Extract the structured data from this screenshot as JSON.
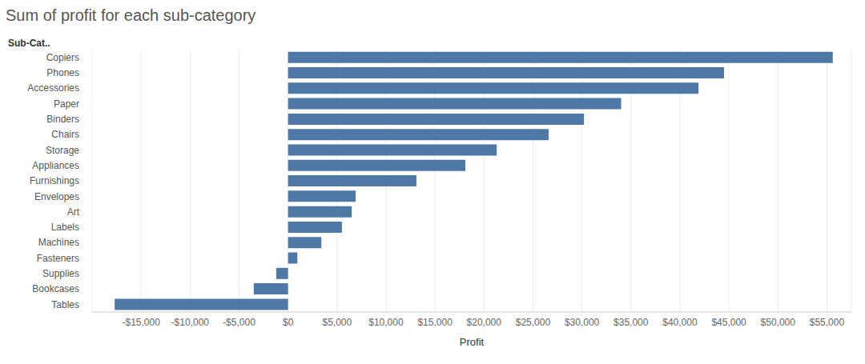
{
  "chart_data": {
    "type": "bar",
    "title": "Sum of profit for each sub-category",
    "x_label": "Profit",
    "y_label": "Sub-Cat..",
    "orientation": "horizontal",
    "categories": [
      "Copiers",
      "Phones",
      "Accessories",
      "Paper",
      "Binders",
      "Chairs",
      "Storage",
      "Appliances",
      "Furnishings",
      "Envelopes",
      "Art",
      "Labels",
      "Machines",
      "Fasteners",
      "Supplies",
      "Bookcases",
      "Tables"
    ],
    "values": [
      55600,
      44500,
      41900,
      34000,
      30200,
      26600,
      21300,
      18100,
      13100,
      6900,
      6500,
      5500,
      3400,
      950,
      -1200,
      -3500,
      -17700
    ],
    "color": "#4e79a7",
    "xlim": [
      -20000,
      57500
    ],
    "xticks": [
      {
        "value": -15000,
        "label": "-$15,000"
      },
      {
        "value": -10000,
        "label": "-$10,000"
      },
      {
        "value": -5000,
        "label": "-$5,000"
      },
      {
        "value": 0,
        "label": "$0"
      },
      {
        "value": 5000,
        "label": "$5,000"
      },
      {
        "value": 10000,
        "label": "$10,000"
      },
      {
        "value": 15000,
        "label": "$15,000"
      },
      {
        "value": 20000,
        "label": "$20,000"
      },
      {
        "value": 25000,
        "label": "$25,000"
      },
      {
        "value": 30000,
        "label": "$30,000"
      },
      {
        "value": 35000,
        "label": "$35,000"
      },
      {
        "value": 40000,
        "label": "$40,000"
      },
      {
        "value": 45000,
        "label": "$45,000"
      },
      {
        "value": 50000,
        "label": "$50,000"
      },
      {
        "value": 55000,
        "label": "$55,000"
      }
    ],
    "grid": true
  }
}
